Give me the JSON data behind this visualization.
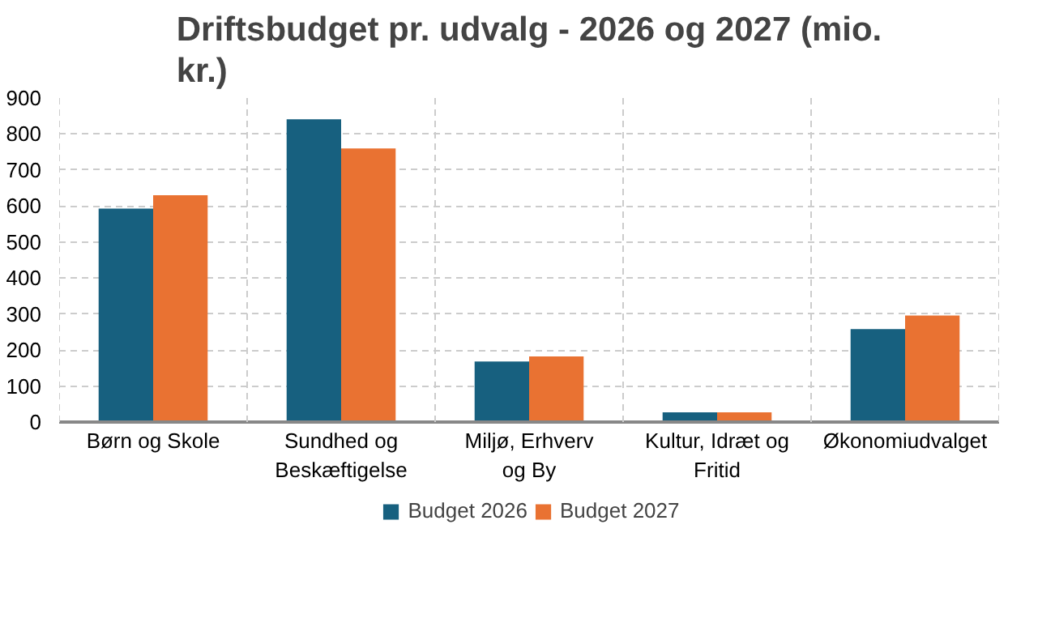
{
  "chart_data": {
    "type": "bar",
    "title": "Driftsbudget pr. udvalg - 2026 og 2027 (mio. kr.)",
    "categories": [
      "Børn og Skole",
      "Sundhed og Beskæftigelse",
      "Miljø, Erhverv og By",
      "Kultur, Idræt og Fritid",
      "Økonomiudvalget"
    ],
    "series": [
      {
        "name": "Budget 2026",
        "color": "#17607f",
        "values": [
          593,
          841,
          168,
          27,
          258
        ]
      },
      {
        "name": "Budget 2027",
        "color": "#e97232",
        "values": [
          630,
          760,
          182,
          27,
          296
        ]
      }
    ],
    "ylim": [
      0,
      900
    ],
    "yticks": [
      0,
      100,
      200,
      300,
      400,
      500,
      600,
      700,
      800,
      900
    ],
    "grid": true,
    "legend": "bottom"
  }
}
